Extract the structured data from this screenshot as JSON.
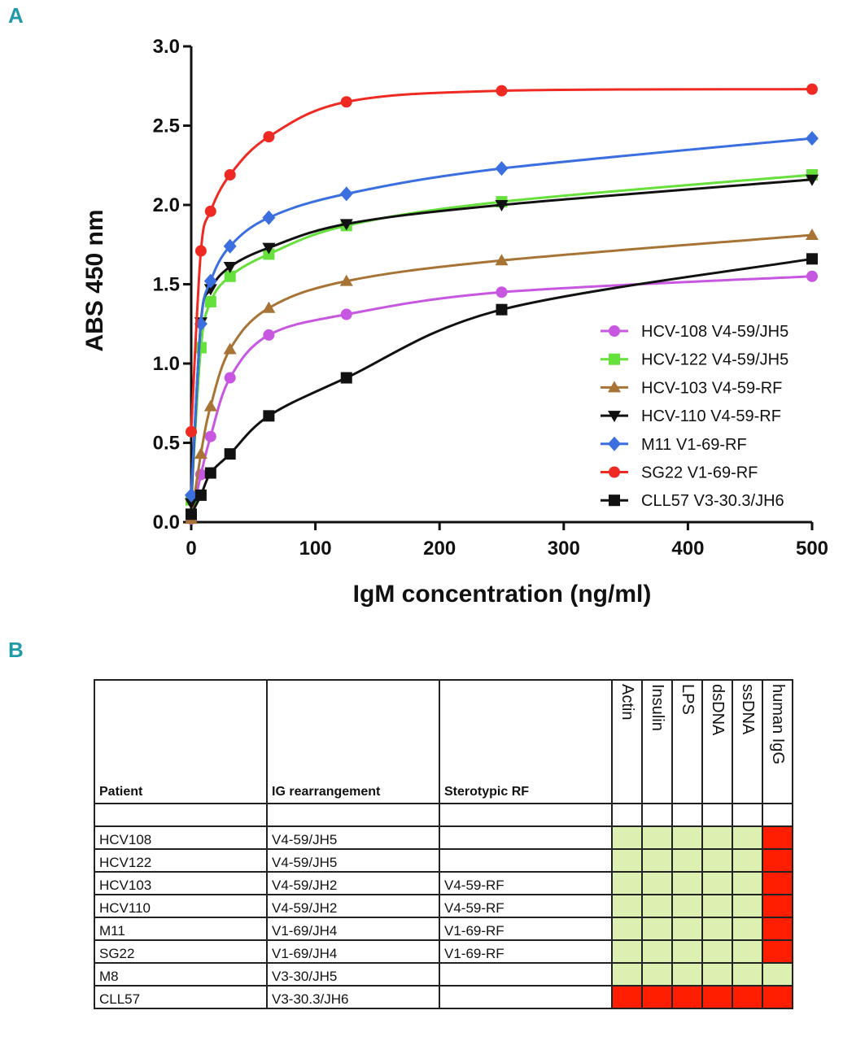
{
  "panel_a_label": "A",
  "panel_b_label": "B",
  "chart_data": {
    "type": "line",
    "xlabel": "IgM concentration (ng/ml)",
    "ylabel": "ABS 450 nm",
    "xlim": [
      0,
      500
    ],
    "ylim": [
      0,
      3.0
    ],
    "x_ticks": [
      "0",
      "100",
      "200",
      "300",
      "400",
      "500"
    ],
    "y_ticks": [
      "0.0",
      "0.5",
      "1.0",
      "1.5",
      "2.0",
      "2.5",
      "3.0"
    ],
    "x_tick_values": [
      0,
      100,
      200,
      300,
      400,
      500
    ],
    "y_tick_values": [
      0,
      0.5,
      1.0,
      1.5,
      2.0,
      2.5,
      3.0
    ],
    "legend_position": "right",
    "x": [
      0,
      7.8,
      15.6,
      31.25,
      62.5,
      125,
      250,
      500
    ],
    "series": [
      {
        "name": "HCV-108 V4-59/JH5",
        "color": "#c757e0",
        "marker": "circle",
        "values": [
          0.02,
          0.3,
          0.54,
          0.91,
          1.18,
          1.31,
          1.45,
          1.55
        ]
      },
      {
        "name": "HCV-122 V4-59/JH5",
        "color": "#66e03a",
        "marker": "square",
        "values": [
          0.14,
          1.1,
          1.39,
          1.55,
          1.69,
          1.87,
          2.02,
          2.19
        ]
      },
      {
        "name": "HCV-103 V4-59-RF",
        "color": "#a87436",
        "marker": "triangle-up",
        "values": [
          0.02,
          0.43,
          0.73,
          1.09,
          1.35,
          1.52,
          1.65,
          1.81
        ]
      },
      {
        "name": "HCV-110 V4-59-RF",
        "color": "#111111",
        "marker": "triangle-down",
        "values": [
          0.12,
          1.26,
          1.47,
          1.61,
          1.73,
          1.88,
          2.0,
          2.16
        ]
      },
      {
        "name": "M11 V1-69-RF",
        "color": "#3b6fe0",
        "marker": "diamond",
        "values": [
          0.17,
          1.25,
          1.52,
          1.74,
          1.92,
          2.07,
          2.23,
          2.42
        ]
      },
      {
        "name": "SG22 V1-69-RF",
        "color": "#ee2a22",
        "marker": "circle",
        "values": [
          0.57,
          1.71,
          1.96,
          2.19,
          2.43,
          2.65,
          2.72,
          2.73
        ]
      },
      {
        "name": "CLL57 V3-30.3/JH6",
        "color": "#111111",
        "marker": "square",
        "values": [
          0.05,
          0.17,
          0.31,
          0.43,
          0.67,
          0.91,
          1.34,
          1.66
        ]
      }
    ]
  },
  "table": {
    "headers": [
      "Patient",
      "IG rearrangement",
      "Sterotypic RF"
    ],
    "antigens": [
      "Actin",
      "Insulin",
      "LPS",
      "dsDNA",
      "ssDNA",
      "human IgG"
    ],
    "rows": [
      {
        "patient": "HCV108",
        "ig": "V4-59/JH5",
        "rf": "",
        "reactivity": [
          "neg",
          "neg",
          "neg",
          "neg",
          "neg",
          "pos"
        ]
      },
      {
        "patient": "HCV122",
        "ig": "V4-59/JH5",
        "rf": "",
        "reactivity": [
          "neg",
          "neg",
          "neg",
          "neg",
          "neg",
          "pos"
        ]
      },
      {
        "patient": "HCV103",
        "ig": "V4-59/JH2",
        "rf": "V4-59-RF",
        "reactivity": [
          "neg",
          "neg",
          "neg",
          "neg",
          "neg",
          "pos"
        ]
      },
      {
        "patient": "HCV110",
        "ig": "V4-59/JH2",
        "rf": "V4-59-RF",
        "reactivity": [
          "neg",
          "neg",
          "neg",
          "neg",
          "neg",
          "pos"
        ]
      },
      {
        "patient": "M11",
        "ig": "V1-69/JH4",
        "rf": "V1-69-RF",
        "reactivity": [
          "neg",
          "neg",
          "neg",
          "neg",
          "neg",
          "pos"
        ]
      },
      {
        "patient": "SG22",
        "ig": "V1-69/JH4",
        "rf": "V1-69-RF",
        "reactivity": [
          "neg",
          "neg",
          "neg",
          "neg",
          "neg",
          "pos"
        ]
      },
      {
        "patient": "M8",
        "ig": "V3-30/JH5",
        "rf": "",
        "reactivity": [
          "neg",
          "neg",
          "neg",
          "neg",
          "neg",
          "neg"
        ]
      },
      {
        "patient": "CLL57",
        "ig": "V3-30.3/JH6",
        "rf": "",
        "reactivity": [
          "pos",
          "pos",
          "pos",
          "pos",
          "pos",
          "pos"
        ]
      }
    ]
  }
}
